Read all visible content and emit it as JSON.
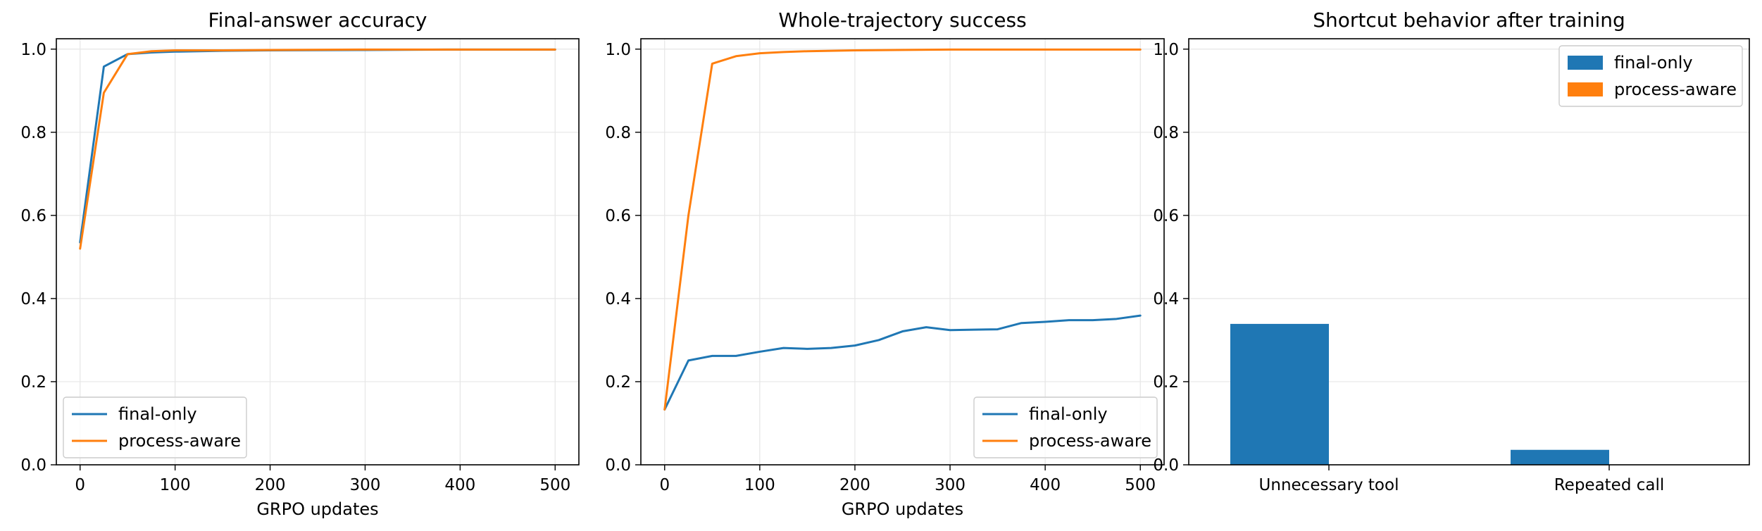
{
  "colors": {
    "final_only": "#1f77b4",
    "process_aware": "#ff7f0e"
  },
  "chart_data": [
    {
      "type": "line",
      "title": "Final-answer accuracy",
      "xlabel": "GRPO updates",
      "ylabel": "",
      "xlim": [
        -25,
        525
      ],
      "ylim": [
        0.0,
        1.025
      ],
      "xticks": [
        0,
        100,
        200,
        300,
        400,
        500
      ],
      "yticks": [
        0.0,
        0.2,
        0.4,
        0.6,
        0.8,
        1.0
      ],
      "grid": true,
      "legend": "lower-left",
      "series": [
        {
          "name": "final-only",
          "color": "#1f77b4",
          "x": [
            0,
            25,
            50,
            75,
            100,
            150,
            200,
            300,
            400,
            500
          ],
          "y": [
            0.535,
            0.958,
            0.988,
            0.992,
            0.994,
            0.996,
            0.997,
            0.998,
            0.999,
            0.999
          ]
        },
        {
          "name": "process-aware",
          "color": "#ff7f0e",
          "x": [
            0,
            25,
            50,
            75,
            100,
            150,
            200,
            300,
            400,
            500
          ],
          "y": [
            0.52,
            0.895,
            0.988,
            0.995,
            0.997,
            0.997,
            0.998,
            0.999,
            0.999,
            0.999
          ]
        }
      ]
    },
    {
      "type": "line",
      "title": "Whole-trajectory success",
      "xlabel": "GRPO updates",
      "ylabel": "",
      "xlim": [
        -25,
        525
      ],
      "ylim": [
        0.0,
        1.025
      ],
      "xticks": [
        0,
        100,
        200,
        300,
        400,
        500
      ],
      "yticks": [
        0.0,
        0.2,
        0.4,
        0.6,
        0.8,
        1.0
      ],
      "grid": true,
      "legend": "lower-right",
      "series": [
        {
          "name": "final-only",
          "color": "#1f77b4",
          "x": [
            0,
            25,
            50,
            75,
            100,
            125,
            150,
            175,
            200,
            225,
            250,
            275,
            300,
            325,
            350,
            375,
            400,
            425,
            450,
            475,
            500
          ],
          "y": [
            0.133,
            0.251,
            0.262,
            0.262,
            0.272,
            0.281,
            0.279,
            0.281,
            0.287,
            0.3,
            0.321,
            0.331,
            0.324,
            0.325,
            0.326,
            0.341,
            0.344,
            0.348,
            0.348,
            0.351,
            0.359
          ]
        },
        {
          "name": "process-aware",
          "color": "#ff7f0e",
          "x": [
            0,
            25,
            50,
            75,
            100,
            125,
            150,
            200,
            300,
            400,
            500
          ],
          "y": [
            0.133,
            0.6,
            0.965,
            0.983,
            0.99,
            0.993,
            0.995,
            0.997,
            0.999,
            0.999,
            0.999
          ]
        }
      ]
    },
    {
      "type": "bar",
      "title": "Shortcut behavior after training",
      "xlabel": "",
      "ylabel": "",
      "categories": [
        "Unnecessary tool",
        "Repeated call"
      ],
      "ylim": [
        0.0,
        1.025
      ],
      "yticks": [
        0.0,
        0.2,
        0.4,
        0.6,
        0.8,
        1.0
      ],
      "grid": true,
      "legend": "upper-right",
      "series": [
        {
          "name": "final-only",
          "color": "#1f77b4",
          "values": [
            0.339,
            0.036
          ]
        },
        {
          "name": "process-aware",
          "color": "#ff7f0e",
          "values": [
            0.0,
            0.0
          ]
        }
      ]
    }
  ]
}
